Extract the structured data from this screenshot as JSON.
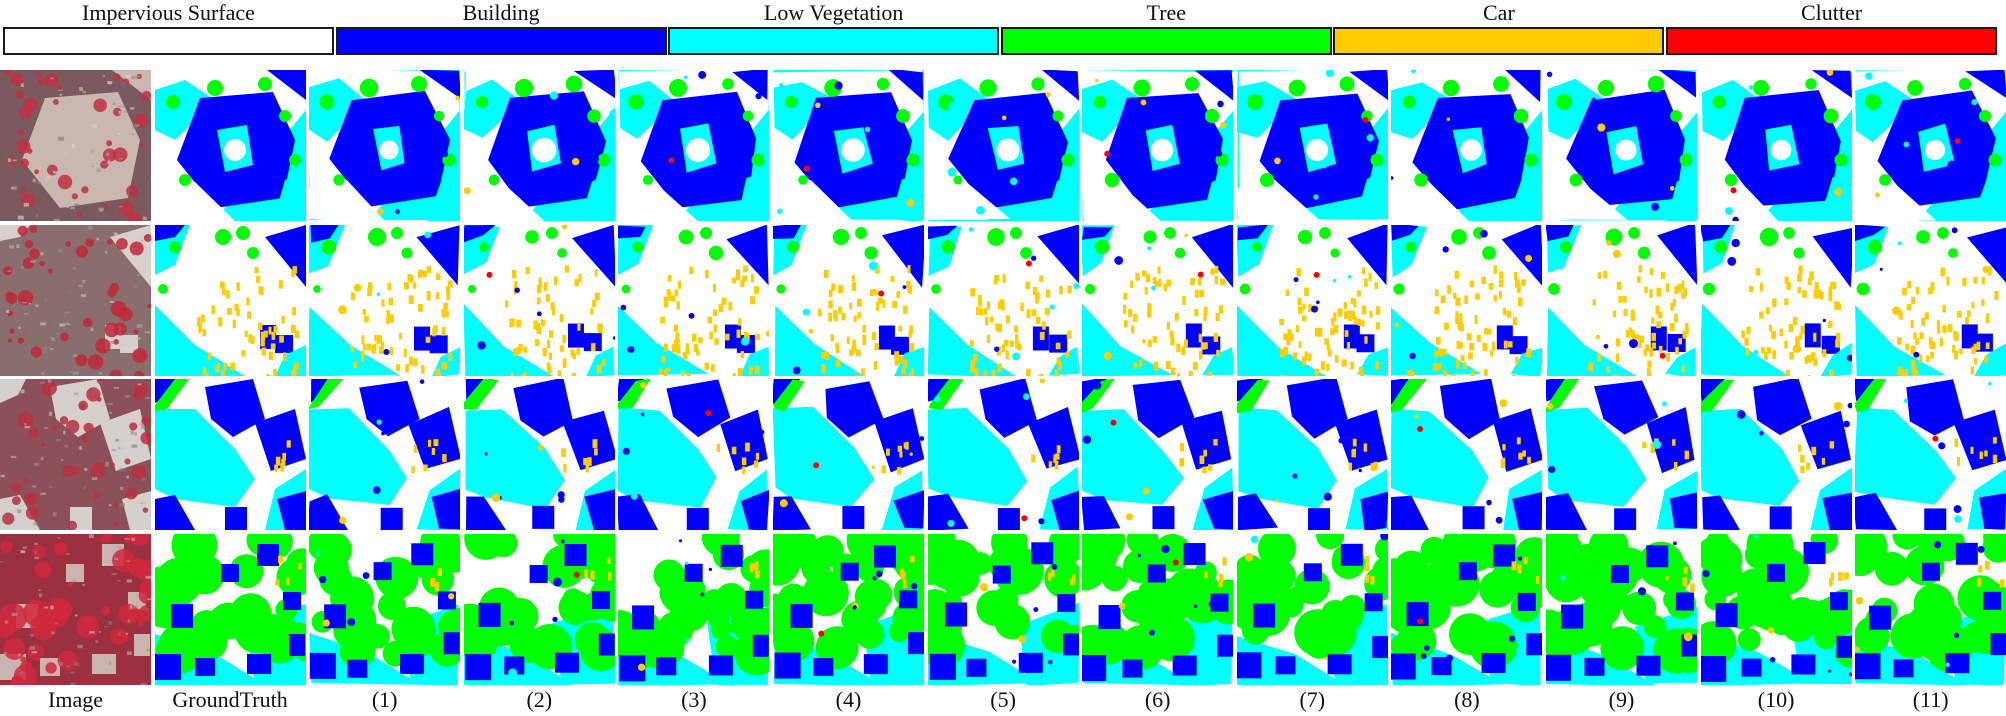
{
  "legend": [
    {
      "label": "Impervious Surface",
      "color": "#ffffff"
    },
    {
      "label": "Building",
      "color": "#0000ff"
    },
    {
      "label": "Low Vegetation",
      "color": "#00ffff"
    },
    {
      "label": "Tree",
      "color": "#00ff00"
    },
    {
      "label": "Car",
      "color": "#ffcc00"
    },
    {
      "label": "Clutter",
      "color": "#ff0000"
    }
  ],
  "rows": [
    {
      "scene": "building-courtyard"
    },
    {
      "scene": "parking-lot"
    },
    {
      "scene": "buildings-lawn"
    },
    {
      "scene": "trees-houses"
    }
  ],
  "columns": [
    "Image",
    "GroundTruth",
    "(1)",
    "(2)",
    "(3)",
    "(4)",
    "(5)",
    "(6)",
    "(7)",
    "(8)",
    "(9)",
    "(10)",
    "(11)"
  ]
}
